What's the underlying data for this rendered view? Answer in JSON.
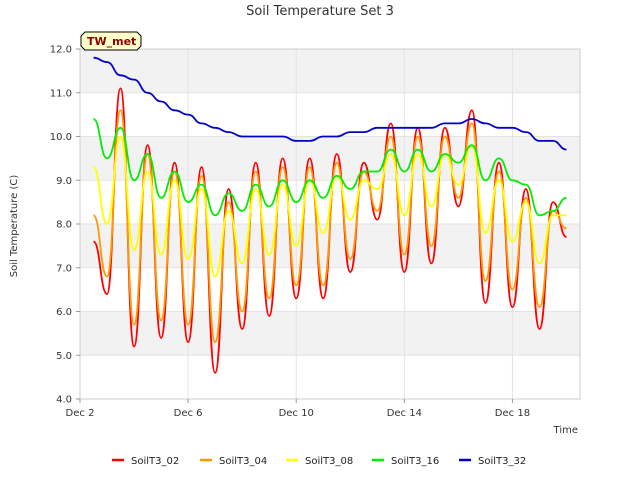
{
  "chart_data": {
    "type": "line",
    "title": "Soil Temperature Set 3",
    "xlabel": "Time",
    "ylabel": "Soil Temperature (C)",
    "badge": "TW_met",
    "ylim": [
      4.0,
      12.0
    ],
    "yticks": [
      "4.0",
      "5.0",
      "6.0",
      "7.0",
      "8.0",
      "9.0",
      "10.0",
      "11.0",
      "12.0"
    ],
    "xlim": [
      "Dec 2",
      "Dec 20 12:00"
    ],
    "xticks": [
      "Dec 2",
      "Dec 6",
      "Dec 10",
      "Dec 14",
      "Dec 18"
    ],
    "grid": true,
    "legend_position": "bottom",
    "series": [
      {
        "name": "SoilT3_02",
        "color": "#ff0000",
        "x": [
          "Dec 2 12:00",
          "Dec 3 00:00",
          "Dec 3 12:00",
          "Dec 4 00:00",
          "Dec 4 12:00",
          "Dec 5 00:00",
          "Dec 5 12:00",
          "Dec 6 00:00",
          "Dec 6 12:00",
          "Dec 7 00:00",
          "Dec 7 12:00",
          "Dec 8 00:00",
          "Dec 8 12:00",
          "Dec 9 00:00",
          "Dec 9 12:00",
          "Dec 10 00:00",
          "Dec 10 12:00",
          "Dec 11 00:00",
          "Dec 11 12:00",
          "Dec 12 00:00",
          "Dec 12 12:00",
          "Dec 13 00:00",
          "Dec 13 12:00",
          "Dec 14 00:00",
          "Dec 14 12:00",
          "Dec 15 00:00",
          "Dec 15 12:00",
          "Dec 16 00:00",
          "Dec 16 12:00",
          "Dec 17 00:00",
          "Dec 17 12:00",
          "Dec 18 00:00",
          "Dec 18 12:00",
          "Dec 19 00:00",
          "Dec 19 12:00",
          "Dec 20 00:00"
        ],
        "values": [
          7.6,
          6.4,
          11.1,
          5.2,
          9.8,
          5.4,
          9.4,
          5.3,
          9.3,
          4.6,
          8.8,
          5.6,
          9.4,
          5.9,
          9.5,
          6.3,
          9.5,
          6.3,
          9.6,
          6.9,
          9.4,
          8.1,
          10.3,
          6.9,
          10.2,
          7.1,
          10.2,
          8.4,
          10.6,
          6.2,
          9.4,
          6.1,
          8.8,
          5.6,
          8.5,
          7.7
        ]
      },
      {
        "name": "SoilT3_04",
        "color": "#ff9900",
        "x": [
          "Dec 2 12:00",
          "Dec 3 00:00",
          "Dec 3 12:00",
          "Dec 4 00:00",
          "Dec 4 12:00",
          "Dec 5 00:00",
          "Dec 5 12:00",
          "Dec 6 00:00",
          "Dec 6 12:00",
          "Dec 7 00:00",
          "Dec 7 12:00",
          "Dec 8 00:00",
          "Dec 8 12:00",
          "Dec 9 00:00",
          "Dec 9 12:00",
          "Dec 10 00:00",
          "Dec 10 12:00",
          "Dec 11 00:00",
          "Dec 11 12:00",
          "Dec 12 00:00",
          "Dec 12 12:00",
          "Dec 13 00:00",
          "Dec 13 12:00",
          "Dec 14 00:00",
          "Dec 14 12:00",
          "Dec 15 00:00",
          "Dec 15 12:00",
          "Dec 16 00:00",
          "Dec 16 12:00",
          "Dec 17 00:00",
          "Dec 17 12:00",
          "Dec 18 00:00",
          "Dec 18 12:00",
          "Dec 19 00:00",
          "Dec 19 12:00",
          "Dec 20 00:00"
        ],
        "values": [
          8.2,
          6.8,
          10.6,
          5.7,
          9.6,
          5.8,
          9.2,
          5.7,
          9.1,
          5.3,
          8.5,
          6.0,
          9.2,
          6.3,
          9.3,
          6.6,
          9.3,
          6.6,
          9.4,
          7.2,
          9.2,
          8.3,
          10.0,
          7.3,
          10.0,
          7.5,
          10.0,
          8.6,
          10.3,
          6.7,
          9.2,
          6.5,
          8.6,
          6.1,
          8.3,
          7.9
        ]
      },
      {
        "name": "SoilT3_08",
        "color": "#ffff00",
        "x": [
          "Dec 2 12:00",
          "Dec 3 00:00",
          "Dec 3 12:00",
          "Dec 4 00:00",
          "Dec 4 12:00",
          "Dec 5 00:00",
          "Dec 5 12:00",
          "Dec 6 00:00",
          "Dec 6 12:00",
          "Dec 7 00:00",
          "Dec 7 12:00",
          "Dec 8 00:00",
          "Dec 8 12:00",
          "Dec 9 00:00",
          "Dec 9 12:00",
          "Dec 10 00:00",
          "Dec 10 12:00",
          "Dec 11 00:00",
          "Dec 11 12:00",
          "Dec 12 00:00",
          "Dec 12 12:00",
          "Dec 13 00:00",
          "Dec 13 12:00",
          "Dec 14 00:00",
          "Dec 14 12:00",
          "Dec 15 00:00",
          "Dec 15 12:00",
          "Dec 16 00:00",
          "Dec 16 12:00",
          "Dec 17 00:00",
          "Dec 17 12:00",
          "Dec 18 00:00",
          "Dec 18 12:00",
          "Dec 19 00:00",
          "Dec 19 12:00",
          "Dec 20 00:00"
        ],
        "values": [
          9.3,
          8.0,
          10.0,
          7.4,
          9.2,
          7.3,
          9.0,
          7.2,
          8.8,
          6.8,
          8.3,
          7.1,
          8.8,
          7.3,
          8.9,
          7.5,
          9.0,
          7.8,
          9.1,
          8.1,
          9.0,
          8.8,
          9.6,
          8.2,
          9.6,
          8.4,
          9.6,
          8.9,
          9.8,
          7.8,
          9.0,
          7.6,
          8.5,
          7.1,
          8.2,
          8.2
        ]
      },
      {
        "name": "SoilT3_16",
        "color": "#00ee00",
        "x": [
          "Dec 2 12:00",
          "Dec 3 00:00",
          "Dec 3 12:00",
          "Dec 4 00:00",
          "Dec 4 12:00",
          "Dec 5 00:00",
          "Dec 5 12:00",
          "Dec 6 00:00",
          "Dec 6 12:00",
          "Dec 7 00:00",
          "Dec 7 12:00",
          "Dec 8 00:00",
          "Dec 8 12:00",
          "Dec 9 00:00",
          "Dec 9 12:00",
          "Dec 10 00:00",
          "Dec 10 12:00",
          "Dec 11 00:00",
          "Dec 11 12:00",
          "Dec 12 00:00",
          "Dec 12 12:00",
          "Dec 13 00:00",
          "Dec 13 12:00",
          "Dec 14 00:00",
          "Dec 14 12:00",
          "Dec 15 00:00",
          "Dec 15 12:00",
          "Dec 16 00:00",
          "Dec 16 12:00",
          "Dec 17 00:00",
          "Dec 17 12:00",
          "Dec 18 00:00",
          "Dec 18 12:00",
          "Dec 19 00:00",
          "Dec 19 12:00",
          "Dec 20 00:00"
        ],
        "values": [
          10.4,
          9.5,
          10.2,
          9.0,
          9.6,
          8.6,
          9.2,
          8.5,
          8.9,
          8.2,
          8.7,
          8.3,
          8.9,
          8.4,
          9.0,
          8.5,
          9.0,
          8.6,
          9.1,
          8.8,
          9.2,
          9.2,
          9.7,
          9.2,
          9.7,
          9.2,
          9.6,
          9.4,
          9.8,
          9.0,
          9.5,
          9.0,
          8.9,
          8.2,
          8.3,
          8.6
        ]
      },
      {
        "name": "SoilT3_32",
        "color": "#0000cc",
        "x": [
          "Dec 2 12:00",
          "Dec 3 00:00",
          "Dec 3 12:00",
          "Dec 4 00:00",
          "Dec 4 12:00",
          "Dec 5 00:00",
          "Dec 5 12:00",
          "Dec 6 00:00",
          "Dec 6 12:00",
          "Dec 7 00:00",
          "Dec 7 12:00",
          "Dec 8 00:00",
          "Dec 8 12:00",
          "Dec 9 00:00",
          "Dec 9 12:00",
          "Dec 10 00:00",
          "Dec 10 12:00",
          "Dec 11 00:00",
          "Dec 11 12:00",
          "Dec 12 00:00",
          "Dec 12 12:00",
          "Dec 13 00:00",
          "Dec 13 12:00",
          "Dec 14 00:00",
          "Dec 14 12:00",
          "Dec 15 00:00",
          "Dec 15 12:00",
          "Dec 16 00:00",
          "Dec 16 12:00",
          "Dec 17 00:00",
          "Dec 17 12:00",
          "Dec 18 00:00",
          "Dec 18 12:00",
          "Dec 19 00:00",
          "Dec 19 12:00",
          "Dec 20 00:00"
        ],
        "values": [
          11.8,
          11.7,
          11.4,
          11.3,
          11.0,
          10.8,
          10.6,
          10.5,
          10.3,
          10.2,
          10.1,
          10.0,
          10.0,
          10.0,
          10.0,
          9.9,
          9.9,
          10.0,
          10.0,
          10.1,
          10.1,
          10.2,
          10.2,
          10.2,
          10.2,
          10.2,
          10.3,
          10.3,
          10.4,
          10.3,
          10.2,
          10.2,
          10.1,
          9.9,
          9.9,
          9.7
        ]
      }
    ]
  }
}
